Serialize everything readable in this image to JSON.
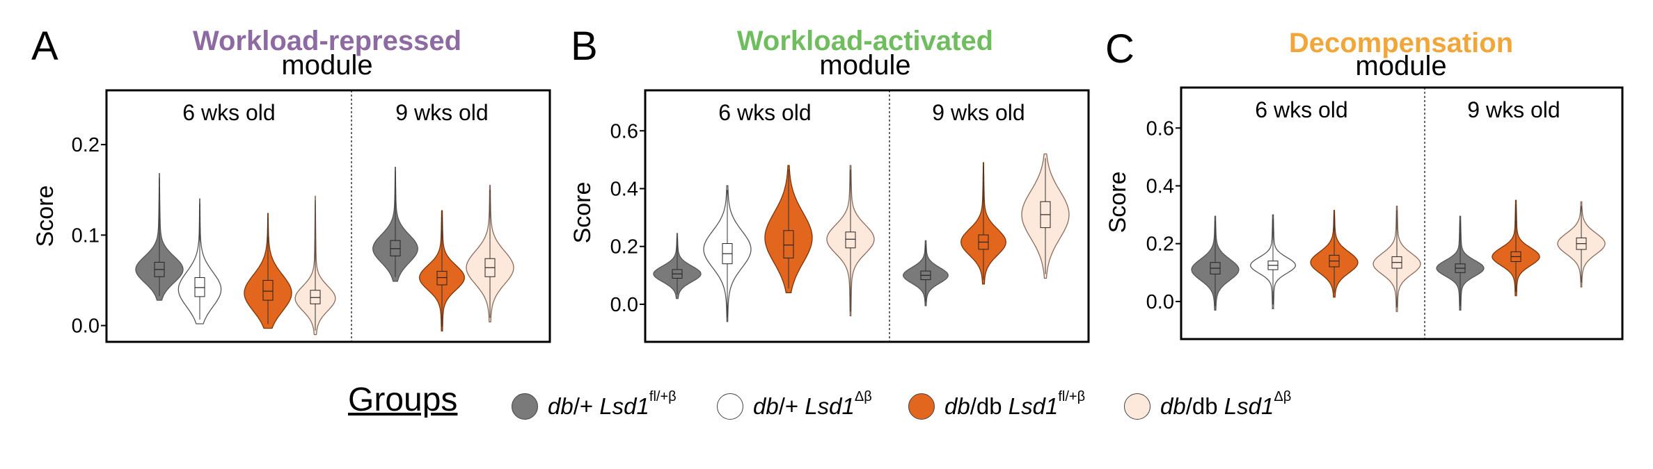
{
  "colors": {
    "group1": "#7a7a7a",
    "group2": "#ffffff",
    "group3": "#e2661e",
    "group4": "#fde9dc",
    "title_A": "#8e6aa3",
    "title_B": "#6fbd5f",
    "title_C": "#f1a639"
  },
  "legend": {
    "title": "Groups",
    "items": [
      {
        "a": "db",
        "b": "/+ ",
        "c": "Lsd1",
        "sup": "fl/+β",
        "color": "#7a7a7a"
      },
      {
        "a": "db",
        "b": "/+ ",
        "c": "Lsd1",
        "sup": "Δβ",
        "color": "#ffffff"
      },
      {
        "a": "db",
        "b": "/db ",
        "c": "Lsd1",
        "sup": "fl/+β",
        "color": "#e2661e"
      },
      {
        "a": "db",
        "b": "/db ",
        "c": "Lsd1",
        "sup": "Δβ",
        "color": "#fde9dc"
      }
    ]
  },
  "chart_data": [
    {
      "type": "violin",
      "panel": "A",
      "title": "Workload-repressed",
      "subtitle": "module",
      "ylabel": "Score",
      "yticks": [
        "0.0",
        "0.1",
        "0.2"
      ],
      "ylim": [
        -0.018,
        0.26
      ],
      "facets": [
        "6 wks old",
        "9 wks old"
      ],
      "groups": [
        {
          "facet": 0,
          "group": 0,
          "median": 0.062,
          "q1": 0.054,
          "q3": 0.07,
          "min": 0.028,
          "max": 0.168,
          "mode": 0.062,
          "width": 1.0
        },
        {
          "facet": 0,
          "group": 1,
          "median": 0.042,
          "q1": 0.032,
          "q3": 0.053,
          "min": 0.002,
          "max": 0.14,
          "mode": 0.04,
          "width": 0.9
        },
        {
          "facet": 0,
          "group": 2,
          "median": 0.038,
          "q1": 0.028,
          "q3": 0.05,
          "min": -0.003,
          "max": 0.124,
          "mode": 0.036,
          "width": 1.0
        },
        {
          "facet": 0,
          "group": 3,
          "median": 0.031,
          "q1": 0.024,
          "q3": 0.039,
          "min": -0.01,
          "max": 0.143,
          "mode": 0.03,
          "width": 0.85
        },
        {
          "facet": 1,
          "group": 0,
          "median": 0.085,
          "q1": 0.077,
          "q3": 0.094,
          "min": 0.049,
          "max": 0.175,
          "mode": 0.085,
          "width": 0.95
        },
        {
          "facet": 1,
          "group": 2,
          "median": 0.053,
          "q1": 0.045,
          "q3": 0.06,
          "min": -0.006,
          "max": 0.127,
          "mode": 0.053,
          "width": 0.95
        },
        {
          "facet": 1,
          "group": 3,
          "median": 0.064,
          "q1": 0.054,
          "q3": 0.074,
          "min": 0.004,
          "max": 0.155,
          "mode": 0.064,
          "width": 1.0
        }
      ]
    },
    {
      "type": "violin",
      "panel": "B",
      "title": "Workload-activated",
      "subtitle": "module",
      "ylabel": "Score",
      "yticks": [
        "0.0",
        "0.2",
        "0.4",
        "0.6"
      ],
      "ylim": [
        -0.13,
        0.74
      ],
      "facets": [
        "6 wks old",
        "9 wks old"
      ],
      "groups": [
        {
          "facet": 0,
          "group": 0,
          "median": 0.105,
          "q1": 0.09,
          "q3": 0.12,
          "min": 0.02,
          "max": 0.245,
          "mode": 0.105,
          "width": 1.0
        },
        {
          "facet": 0,
          "group": 1,
          "median": 0.175,
          "q1": 0.14,
          "q3": 0.21,
          "min": -0.06,
          "max": 0.41,
          "mode": 0.19,
          "width": 1.0
        },
        {
          "facet": 0,
          "group": 2,
          "median": 0.205,
          "q1": 0.16,
          "q3": 0.255,
          "min": 0.04,
          "max": 0.48,
          "mode": 0.23,
          "width": 1.0
        },
        {
          "facet": 0,
          "group": 3,
          "median": 0.225,
          "q1": 0.195,
          "q3": 0.25,
          "min": -0.04,
          "max": 0.48,
          "mode": 0.225,
          "width": 1.0
        },
        {
          "facet": 1,
          "group": 0,
          "median": 0.1,
          "q1": 0.085,
          "q3": 0.115,
          "min": -0.005,
          "max": 0.22,
          "mode": 0.1,
          "width": 0.95
        },
        {
          "facet": 1,
          "group": 2,
          "median": 0.215,
          "q1": 0.19,
          "q3": 0.24,
          "min": 0.07,
          "max": 0.49,
          "mode": 0.215,
          "width": 0.95
        },
        {
          "facet": 1,
          "group": 3,
          "median": 0.31,
          "q1": 0.265,
          "q3": 0.355,
          "min": 0.09,
          "max": 0.52,
          "mode": 0.31,
          "width": 1.0
        }
      ]
    },
    {
      "type": "violin",
      "panel": "C",
      "title": "Decompensation",
      "subtitle": "module",
      "ylabel": "Score",
      "yticks": [
        "0.0",
        "0.2",
        "0.4",
        "0.6"
      ],
      "ylim": [
        -0.13,
        0.74
      ],
      "facets": [
        "6 wks old",
        "9 wks old"
      ],
      "groups": [
        {
          "facet": 0,
          "group": 0,
          "median": 0.115,
          "q1": 0.095,
          "q3": 0.135,
          "min": -0.03,
          "max": 0.295,
          "mode": 0.11,
          "width": 1.0
        },
        {
          "facet": 0,
          "group": 1,
          "median": 0.125,
          "q1": 0.11,
          "q3": 0.14,
          "min": -0.025,
          "max": 0.3,
          "mode": 0.125,
          "width": 0.95
        },
        {
          "facet": 0,
          "group": 2,
          "median": 0.14,
          "q1": 0.12,
          "q3": 0.16,
          "min": 0.015,
          "max": 0.315,
          "mode": 0.135,
          "width": 1.0
        },
        {
          "facet": 0,
          "group": 3,
          "median": 0.135,
          "q1": 0.115,
          "q3": 0.155,
          "min": -0.035,
          "max": 0.33,
          "mode": 0.13,
          "width": 1.0
        },
        {
          "facet": 1,
          "group": 0,
          "median": 0.115,
          "q1": 0.1,
          "q3": 0.13,
          "min": -0.03,
          "max": 0.295,
          "mode": 0.115,
          "width": 1.0
        },
        {
          "facet": 1,
          "group": 2,
          "median": 0.155,
          "q1": 0.138,
          "q3": 0.172,
          "min": 0.02,
          "max": 0.35,
          "mode": 0.155,
          "width": 1.0
        },
        {
          "facet": 1,
          "group": 3,
          "median": 0.2,
          "q1": 0.18,
          "q3": 0.22,
          "min": 0.05,
          "max": 0.345,
          "mode": 0.2,
          "width": 1.0
        }
      ]
    }
  ]
}
